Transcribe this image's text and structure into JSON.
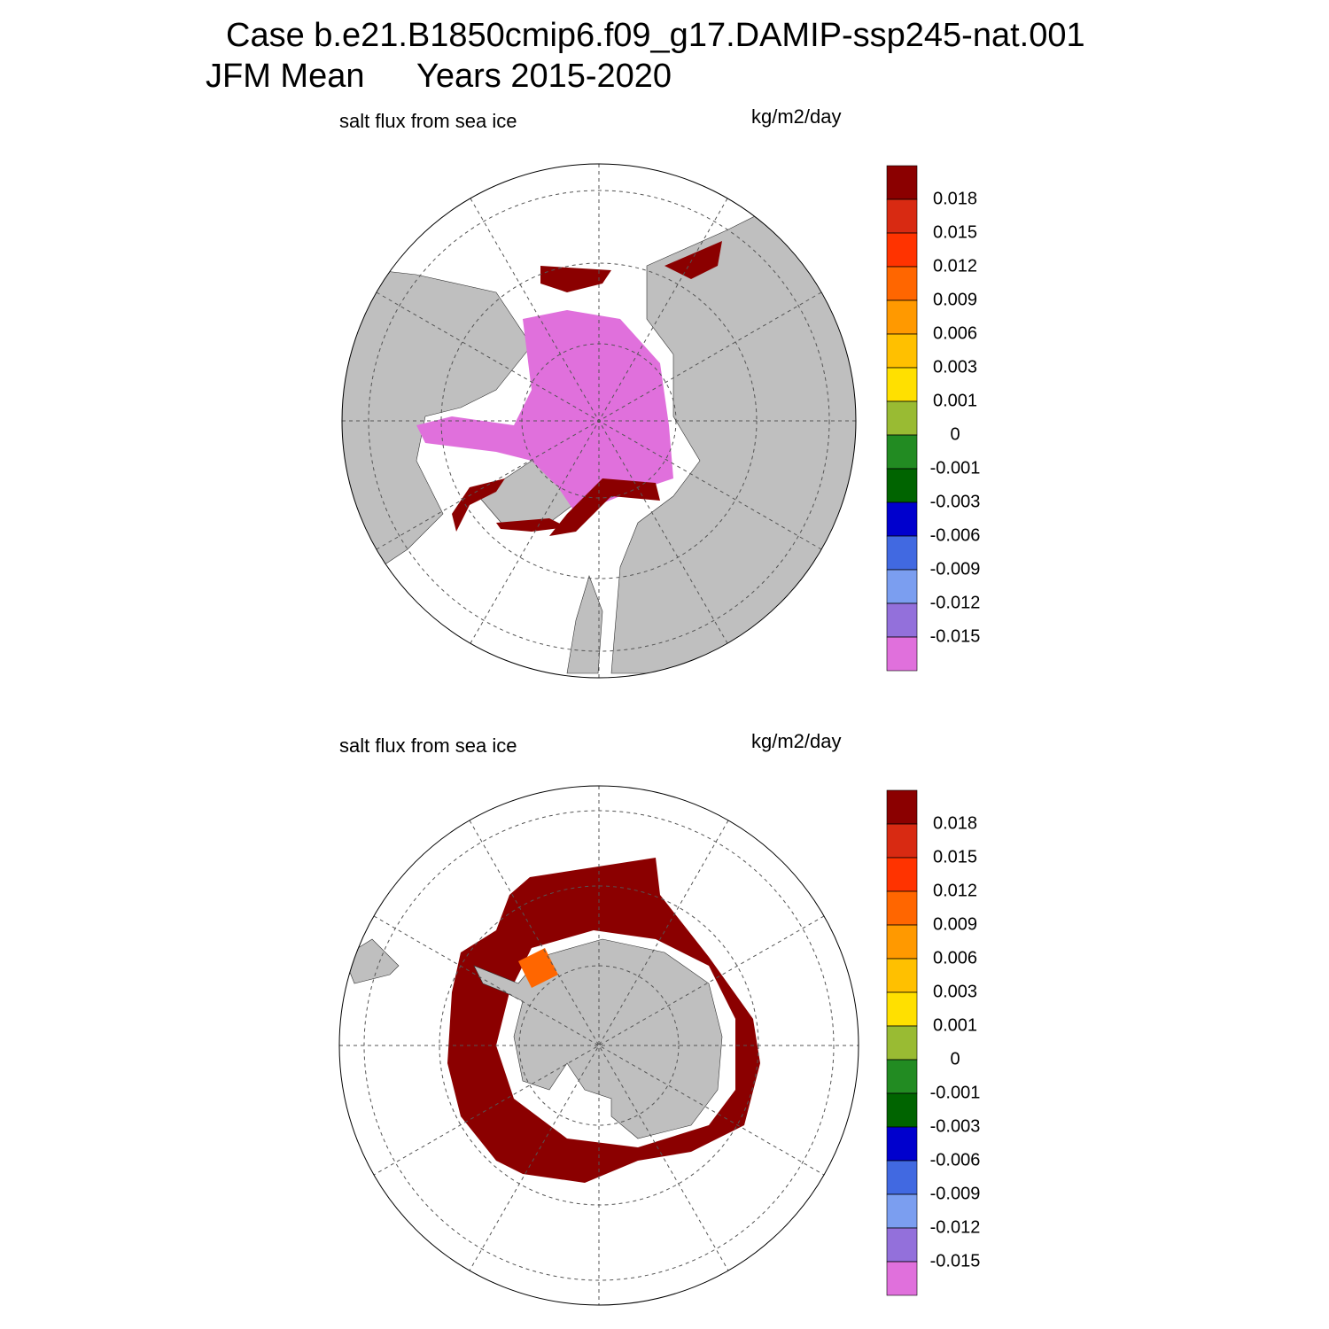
{
  "header": {
    "case": "Case b.e21.B1850cmip6.f09_g17.DAMIP-ssp245-nat.001",
    "season": "JFM Mean",
    "years": "Years 2015-2020"
  },
  "panels": [
    {
      "title": "salt flux from sea ice",
      "units": "kg/m2/day",
      "colorbar": {
        "levels": [
          0.018,
          0.015,
          0.012,
          0.009,
          0.006,
          0.003,
          0.001,
          0,
          -0.001,
          -0.003,
          -0.006,
          -0.009,
          -0.012,
          -0.015
        ],
        "colors": [
          "#8b0000",
          "#d82a12",
          "#ff3300",
          "#ff6600",
          "#ff9900",
          "#ffc000",
          "#ffe000",
          "#99bb33",
          "#228b22",
          "#006400",
          "#0000cd",
          "#4169e1",
          "#7b9ef0",
          "#9370db",
          "#e070dc"
        ]
      }
    },
    {
      "title": "salt flux from sea ice",
      "units": "kg/m2/day",
      "colorbar": {
        "levels": [
          0.018,
          0.015,
          0.012,
          0.009,
          0.006,
          0.003,
          0.001,
          0,
          -0.001,
          -0.003,
          -0.006,
          -0.009,
          -0.012,
          -0.015
        ],
        "colors": [
          "#8b0000",
          "#d82a12",
          "#ff3300",
          "#ff6600",
          "#ff9900",
          "#ffc000",
          "#ffe000",
          "#99bb33",
          "#228b22",
          "#006400",
          "#0000cd",
          "#4169e1",
          "#7b9ef0",
          "#9370db",
          "#e070dc"
        ]
      }
    }
  ]
}
